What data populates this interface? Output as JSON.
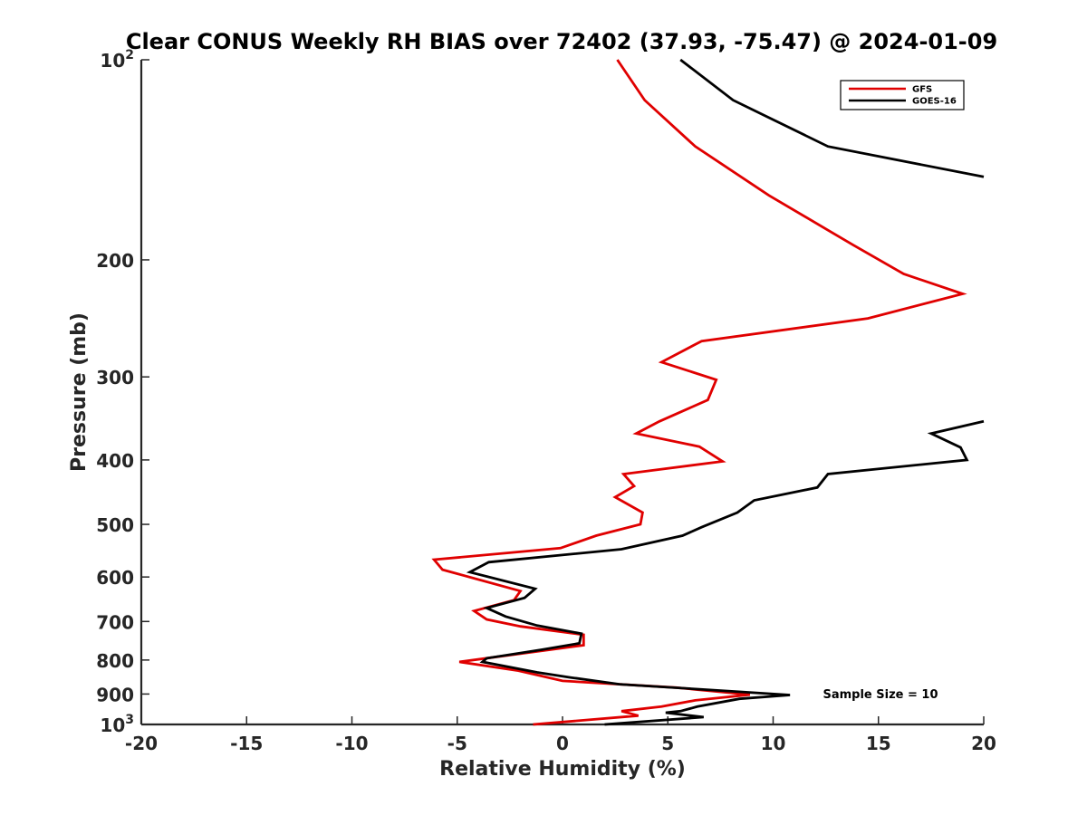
{
  "chart_data": {
    "type": "line",
    "title": "Clear CONUS Weekly RH BIAS over 72402 (37.93, -75.47) @ 2024-01-09",
    "xlabel": "Relative Humidity (%)",
    "ylabel": "Pressure (mb)",
    "xlim": [
      -20,
      20
    ],
    "ylim": [
      1000,
      100
    ],
    "yscale": "log",
    "x_ticks": [
      -20,
      -15,
      -10,
      -5,
      0,
      5,
      10,
      15,
      20
    ],
    "y_ticks": [
      {
        "value": 100,
        "label": "10",
        "sup": "2"
      },
      {
        "value": 200,
        "label": "200"
      },
      {
        "value": 300,
        "label": "300"
      },
      {
        "value": 400,
        "label": "400"
      },
      {
        "value": 500,
        "label": "500"
      },
      {
        "value": 600,
        "label": "600"
      },
      {
        "value": 700,
        "label": "700"
      },
      {
        "value": 800,
        "label": "800"
      },
      {
        "value": 900,
        "label": "900"
      },
      {
        "value": 1000,
        "label": "10",
        "sup": "3"
      }
    ],
    "legend": {
      "placement": "top-right"
    },
    "annotation": "Sample Size = 10",
    "series": [
      {
        "name": "GFS",
        "color": "#e00000",
        "points": [
          [
            2.6,
            100
          ],
          [
            3.9,
            115
          ],
          [
            6.3,
            135
          ],
          [
            9.8,
            160
          ],
          [
            13.8,
            190
          ],
          [
            16.2,
            210
          ],
          [
            19.0,
            225
          ],
          [
            14.5,
            245
          ],
          [
            6.6,
            265
          ],
          [
            4.7,
            285
          ],
          [
            7.3,
            303
          ],
          [
            6.9,
            325
          ],
          [
            4.6,
            350
          ],
          [
            3.5,
            365
          ],
          [
            6.5,
            382
          ],
          [
            7.6,
            402
          ],
          [
            2.9,
            420
          ],
          [
            3.4,
            438
          ],
          [
            2.5,
            455
          ],
          [
            3.8,
            480
          ],
          [
            3.7,
            500
          ],
          [
            1.6,
            520
          ],
          [
            -0.1,
            543
          ],
          [
            -6.1,
            565
          ],
          [
            -5.7,
            585
          ],
          [
            -2.0,
            630
          ],
          [
            -2.3,
            650
          ],
          [
            -4.2,
            675
          ],
          [
            -3.6,
            695
          ],
          [
            -2.0,
            712
          ],
          [
            1.0,
            733
          ],
          [
            1.0,
            760
          ],
          [
            -1.0,
            775
          ],
          [
            -4.9,
            805
          ],
          [
            -2.1,
            830
          ],
          [
            0.0,
            860
          ],
          [
            5.4,
            880
          ],
          [
            8.9,
            902
          ],
          [
            6.3,
            920
          ],
          [
            4.7,
            940
          ],
          [
            2.8,
            955
          ],
          [
            3.6,
            970
          ],
          [
            -1.4,
            1000
          ]
        ]
      },
      {
        "name": "GOES-16",
        "color": "#000000",
        "points": [
          [
            5.6,
            100
          ],
          [
            8.1,
            115
          ],
          [
            12.6,
            135
          ],
          [
            20.0,
            150
          ],
          [
            null,
            360
          ],
          [
            20.0,
            350
          ],
          [
            17.5,
            365
          ],
          [
            18.9,
            383
          ],
          [
            19.2,
            400
          ],
          [
            12.6,
            420
          ],
          [
            12.1,
            440
          ],
          [
            9.1,
            460
          ],
          [
            8.3,
            480
          ],
          [
            6.6,
            505
          ],
          [
            5.7,
            520
          ],
          [
            2.8,
            545
          ],
          [
            -3.5,
            570
          ],
          [
            -4.4,
            590
          ],
          [
            -1.3,
            625
          ],
          [
            -1.8,
            645
          ],
          [
            -3.6,
            668
          ],
          [
            -2.7,
            688
          ],
          [
            -1.2,
            710
          ],
          [
            0.9,
            730
          ],
          [
            0.8,
            755
          ],
          [
            -1.0,
            772
          ],
          [
            -3.6,
            795
          ],
          [
            -3.8,
            805
          ],
          [
            -1.2,
            835
          ],
          [
            0.4,
            850
          ],
          [
            2.7,
            870
          ],
          [
            6.5,
            885
          ],
          [
            10.8,
            903
          ],
          [
            8.4,
            915
          ],
          [
            6.4,
            940
          ],
          [
            5.6,
            955
          ],
          [
            4.9,
            960
          ],
          [
            6.7,
            975
          ],
          [
            2.0,
            1000
          ]
        ]
      }
    ]
  }
}
